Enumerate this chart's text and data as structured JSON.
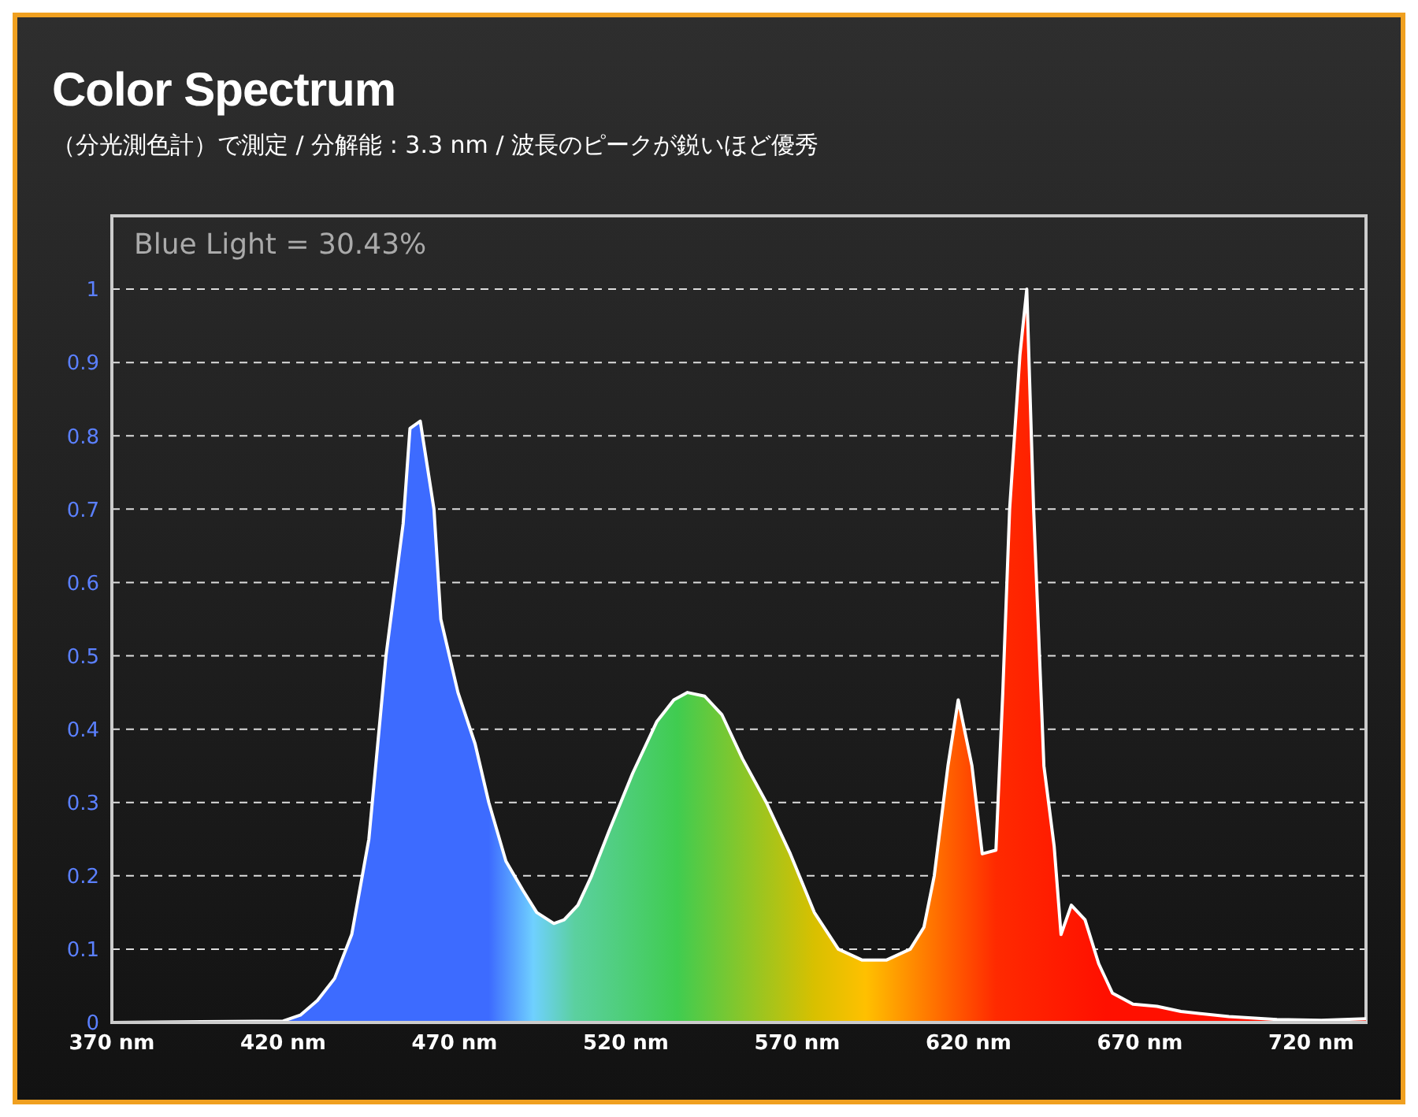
{
  "chart_data": {
    "type": "area",
    "title": "Color Spectrum",
    "subtitle": "（分光測色計）で測定 / 分解能 : 3.3 nm / 波長のピークが鋭いほど優秀",
    "annotations": [
      "Blue Light = 30.43%"
    ],
    "x": [
      370,
      420,
      425,
      430,
      435,
      440,
      445,
      450,
      455,
      457,
      460,
      464,
      466,
      471,
      476,
      480,
      485,
      490,
      494,
      499,
      502,
      506,
      510,
      515,
      522,
      529,
      534,
      538,
      543,
      548,
      554,
      561,
      568,
      575,
      582,
      589,
      596,
      603,
      607,
      610,
      614,
      617,
      621,
      624,
      628,
      630,
      632,
      635,
      637,
      639,
      642,
      645,
      647,
      650,
      654,
      658,
      662,
      668,
      675,
      682,
      696,
      710,
      723,
      736
    ],
    "series": [
      {
        "color": "#ffffff",
        "values": [
          0,
          0.002,
          0.01,
          0.03,
          0.06,
          0.12,
          0.25,
          0.5,
          0.68,
          0.81,
          0.82,
          0.7,
          0.55,
          0.45,
          0.38,
          0.3,
          0.22,
          0.18,
          0.15,
          0.135,
          0.14,
          0.16,
          0.2,
          0.26,
          0.34,
          0.41,
          0.44,
          0.45,
          0.445,
          0.42,
          0.36,
          0.3,
          0.23,
          0.15,
          0.1,
          0.085,
          0.085,
          0.1,
          0.13,
          0.2,
          0.35,
          0.44,
          0.35,
          0.23,
          0.235,
          0.45,
          0.7,
          0.91,
          1.0,
          0.7,
          0.35,
          0.24,
          0.12,
          0.16,
          0.14,
          0.08,
          0.04,
          0.025,
          0.022,
          0.015,
          0.008,
          0.004,
          0.003,
          0.005
        ]
      }
    ],
    "xlim": [
      370,
      736
    ],
    "xticks": [
      {
        "value": 370,
        "label": "370 nm"
      },
      {
        "value": 420,
        "label": "420 nm"
      },
      {
        "value": 470,
        "label": "470 nm"
      },
      {
        "value": 520,
        "label": "520 nm"
      },
      {
        "value": 570,
        "label": "570 nm"
      },
      {
        "value": 620,
        "label": "620 nm"
      },
      {
        "value": 670,
        "label": "670 nm"
      },
      {
        "value": 720,
        "label": "720 nm"
      }
    ],
    "ylim": [
      0,
      1.1
    ],
    "yticks": [
      0,
      0.1,
      0.2,
      0.3,
      0.4,
      0.5,
      0.6,
      0.7,
      0.8,
      0.9,
      1
    ],
    "grid": "y",
    "legend": false,
    "marker": "none",
    "line_style": "solid"
  }
}
